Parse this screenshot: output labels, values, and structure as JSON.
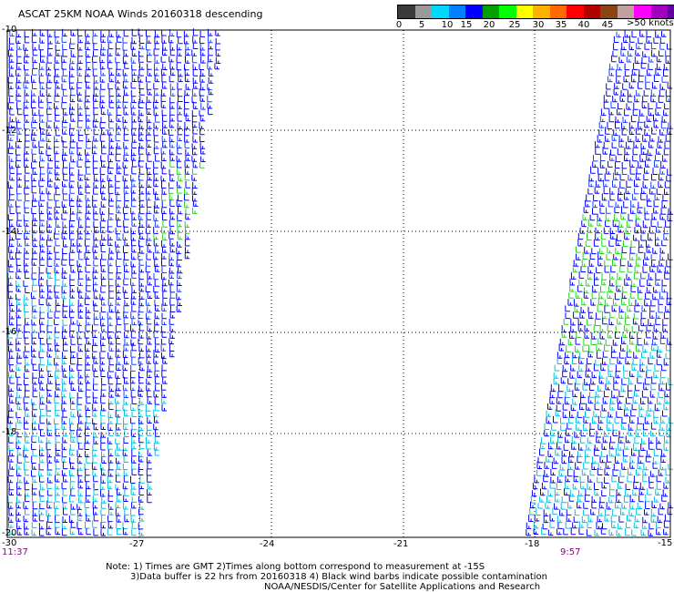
{
  "title": "ASCAT 25KM NOAA Winds 20160318 descending",
  "colorbar": {
    "unit_label": ">50 knots",
    "labels": [
      "0",
      "5",
      "10",
      "15",
      "20",
      "25",
      "30",
      "35",
      "40",
      "45"
    ],
    "colors": [
      "#3a3a3a",
      "#9a9a9a",
      "#00d8ff",
      "#0080ff",
      "#0000ff",
      "#00a000",
      "#00ff00",
      "#ffff00",
      "#ffb000",
      "#ff6a00",
      "#ff0000",
      "#b00000",
      "#8b4513",
      "#c0a0a0",
      "#ff00ff",
      "#a000c0",
      "#6000a0"
    ]
  },
  "map": {
    "lat_labels": [
      "-10",
      "-12",
      "-14",
      "-16",
      "-18",
      "-20"
    ],
    "lon_labels": [
      "-30",
      "-27",
      "-24",
      "-21",
      "-18",
      "-15"
    ],
    "swath_times": [
      "11:37",
      "9:57"
    ],
    "barb_colors": {
      "light_blue": "#00bfe0",
      "blue": "#0000ff",
      "mid_blue": "#1a40ff",
      "green": "#1fd41f"
    }
  },
  "notes": [
    "Note: 1) Times are GMT 2)Times along bottom correspond to measurement at -15S",
    "3)Data buffer is 22 hrs from 20160318 4) Black wind barbs indicate possible contamination",
    "NOAA/NESDIS/Center for Satellite Applications and Research"
  ]
}
